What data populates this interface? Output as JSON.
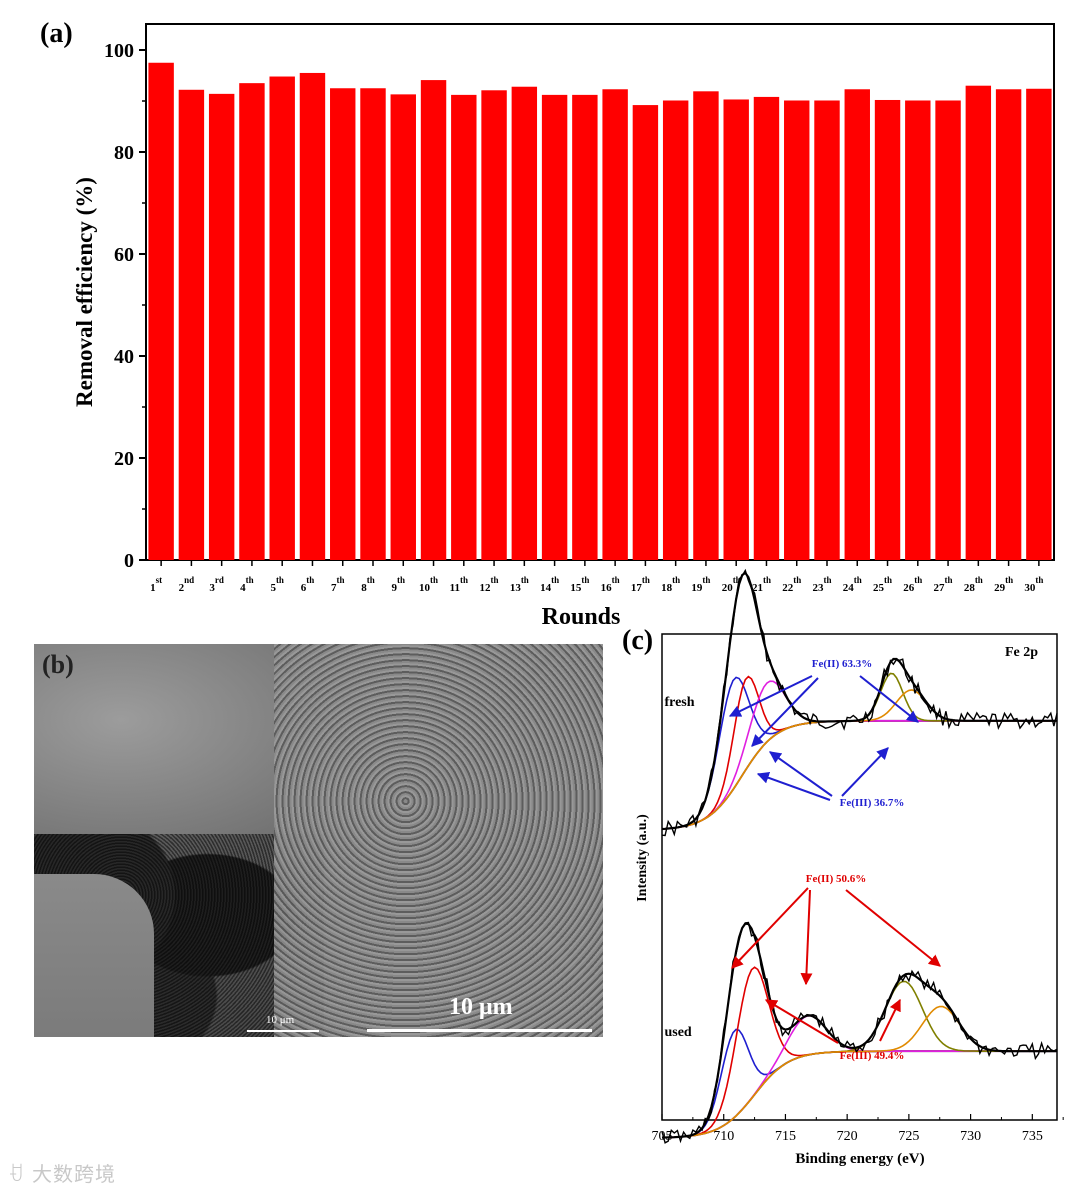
{
  "panel_labels": {
    "a": "(a)",
    "b": "(b)",
    "c": "(c)"
  },
  "chart_data": [
    {
      "type": "bar",
      "panel": "(a)",
      "title": "",
      "xlabel": "Rounds",
      "ylabel": "Removal efficiency (%)",
      "ylim": [
        0,
        100
      ],
      "yticks": [
        "0",
        "20",
        "40",
        "60",
        "80",
        "100"
      ],
      "bar_color": "#ff0000",
      "categories": [
        {
          "num": "1",
          "sup": "st"
        },
        {
          "num": "2",
          "sup": "nd"
        },
        {
          "num": "3",
          "sup": "rd"
        },
        {
          "num": "4",
          "sup": "th"
        },
        {
          "num": "5",
          "sup": "th"
        },
        {
          "num": "6",
          "sup": "th"
        },
        {
          "num": "7",
          "sup": "th"
        },
        {
          "num": "8",
          "sup": "th"
        },
        {
          "num": "9",
          "sup": "th"
        },
        {
          "num": "10",
          "sup": "th"
        },
        {
          "num": "11",
          "sup": "th"
        },
        {
          "num": "12",
          "sup": "th"
        },
        {
          "num": "13",
          "sup": "th"
        },
        {
          "num": "14",
          "sup": "th"
        },
        {
          "num": "15",
          "sup": "th"
        },
        {
          "num": "16",
          "sup": "th"
        },
        {
          "num": "17",
          "sup": "th"
        },
        {
          "num": "18",
          "sup": "th"
        },
        {
          "num": "19",
          "sup": "th"
        },
        {
          "num": "20",
          "sup": "th"
        },
        {
          "num": "21",
          "sup": "th"
        },
        {
          "num": "22",
          "sup": "th"
        },
        {
          "num": "23",
          "sup": "th"
        },
        {
          "num": "24",
          "sup": "th"
        },
        {
          "num": "25",
          "sup": "th"
        },
        {
          "num": "26",
          "sup": "th"
        },
        {
          "num": "27",
          "sup": "th"
        },
        {
          "num": "28",
          "sup": "th"
        },
        {
          "num": "29",
          "sup": "th"
        },
        {
          "num": "30",
          "sup": "th"
        }
      ],
      "values": [
        97.5,
        92.2,
        91.4,
        93.5,
        94.8,
        95.5,
        92.5,
        92.5,
        91.3,
        94.1,
        91.2,
        92.1,
        92.8,
        91.2,
        91.2,
        92.3,
        89.2,
        90.1,
        91.9,
        90.3,
        90.8,
        90.1,
        90.1,
        92.3,
        90.2,
        90.1,
        90.1,
        93.0,
        92.3,
        92.4
      ]
    },
    {
      "type": "line",
      "panel": "(c)",
      "title": "Fe 2p",
      "xlabel": "Binding energy (eV)",
      "ylabel": "Intensity (a.u.)",
      "xlim": [
        705,
        737
      ],
      "xticks": [
        "705",
        "710",
        "715",
        "720",
        "725",
        "730",
        "735"
      ],
      "offsets": {
        "fresh": 0,
        "used": -2.2
      },
      "series": [
        {
          "name": "fresh",
          "label": "fresh",
          "components": [
            {
              "role": "Fe(II)",
              "center": 710.8,
              "height": 0.78,
              "width": 1.2,
              "color": "#1f1fd0"
            },
            {
              "role": "Fe(II)",
              "center": 711.8,
              "height": 0.65,
              "width": 1.0,
              "color": "#e00000"
            },
            {
              "role": "Fe(III)",
              "center": 713.5,
              "height": 0.42,
              "width": 1.4,
              "color": "#e020e0"
            },
            {
              "role": "Fe(II)",
              "center": 723.6,
              "height": 0.34,
              "width": 0.9,
              "color": "#808000"
            },
            {
              "role": "Fe(III)",
              "center": 725.2,
              "height": 0.22,
              "width": 1.2,
              "color": "#e08a00"
            }
          ],
          "baseline": {
            "start": 0.0,
            "end": 0.78,
            "mid": 711.5
          }
        },
        {
          "name": "used",
          "label": "used",
          "components": [
            {
              "role": "Fe(III)",
              "center": 710.9,
              "height": 0.62,
              "width": 1.1,
              "color": "#1f1fd0"
            },
            {
              "role": "Fe(II)",
              "center": 712.3,
              "height": 0.92,
              "width": 1.3,
              "color": "#e00000"
            },
            {
              "role": "Fe(II)",
              "center": 716.8,
              "height": 0.28,
              "width": 1.5,
              "color": "#e020e0"
            },
            {
              "role": "Fe(II)",
              "center": 724.6,
              "height": 0.5,
              "width": 1.5,
              "color": "#808000"
            },
            {
              "role": "Fe(III)",
              "center": 727.6,
              "height": 0.32,
              "width": 1.5,
              "color": "#e08a00"
            }
          ],
          "baseline": {
            "start": 0.0,
            "end": 0.62,
            "mid": 712.5
          }
        }
      ],
      "annotations": {
        "fresh_fe2": "Fe(II) 63.3%",
        "fresh_fe3": "Fe(III) 36.7%",
        "used_fe2": "Fe(II) 50.6%",
        "used_fe3": "Fe(III) 49.4%"
      },
      "annotation_colors": {
        "fresh": "#1f1fd0",
        "used": "#e00000"
      }
    }
  ],
  "sem": {
    "scale_big": "10 μm",
    "scale_small": "10 μm"
  },
  "watermark": "大数跨境"
}
